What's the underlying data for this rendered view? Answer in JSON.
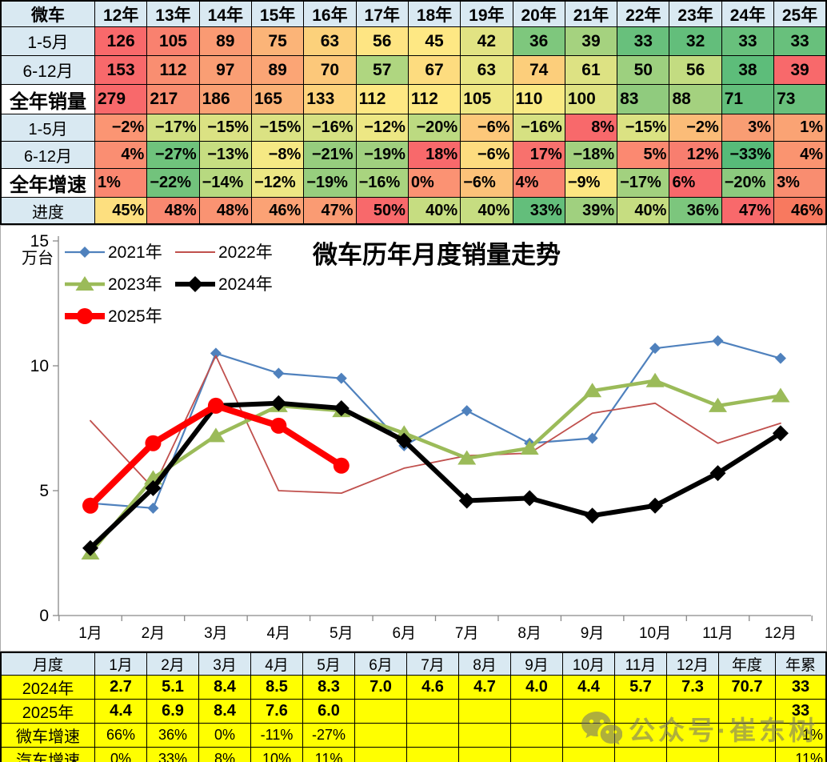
{
  "top_table": {
    "header": [
      "微车",
      "12年",
      "13年",
      "14年",
      "15年",
      "16年",
      "17年",
      "18年",
      "19年",
      "20年",
      "21年",
      "22年",
      "23年",
      "24年",
      "25年"
    ],
    "rows": [
      {
        "label": "1-5月",
        "kind": "count",
        "cells": [
          [
            "126",
            "#F8696B"
          ],
          [
            "105",
            "#F9816F"
          ],
          [
            "89",
            "#FA9A73"
          ],
          [
            "75",
            "#FBB478"
          ],
          [
            "63",
            "#FCD17B"
          ],
          [
            "56",
            "#FEE583"
          ],
          [
            "45",
            "#FEE884"
          ],
          [
            "42",
            "#E1E383"
          ],
          [
            "36",
            "#7EC77D"
          ],
          [
            "39",
            "#A5D27F"
          ],
          [
            "33",
            "#68C07C"
          ],
          [
            "32",
            "#63BE7B"
          ],
          [
            "33",
            "#68C07C"
          ],
          [
            "33",
            "#68C07C"
          ]
        ]
      },
      {
        "label": "6-12月",
        "kind": "count",
        "cells": [
          [
            "153",
            "#F8696B"
          ],
          [
            "112",
            "#F98E71"
          ],
          [
            "97",
            "#FA9E74"
          ],
          [
            "89",
            "#FBA575"
          ],
          [
            "70",
            "#FCC87A"
          ],
          [
            "57",
            "#AFD680"
          ],
          [
            "67",
            "#FDDC7F"
          ],
          [
            "63",
            "#E8E684"
          ],
          [
            "74",
            "#FCCE7B"
          ],
          [
            "61",
            "#DDE283"
          ],
          [
            "50",
            "#9DD07F"
          ],
          [
            "56",
            "#C3DC81"
          ],
          [
            "38",
            "#5DBD7A"
          ],
          [
            "39",
            "#F8696B"
          ]
        ]
      },
      {
        "label": "全年销量",
        "kind": "total",
        "cells": [
          [
            "279",
            "#F8696B"
          ],
          [
            "217",
            "#F98E71"
          ],
          [
            "186",
            "#FAA174"
          ],
          [
            "165",
            "#FBB277"
          ],
          [
            "133",
            "#FDD37C"
          ],
          [
            "112",
            "#FEE883"
          ],
          [
            "112",
            "#FEE883"
          ],
          [
            "105",
            "#EFE884"
          ],
          [
            "110",
            "#F9EA84"
          ],
          [
            "100",
            "#DFE383"
          ],
          [
            "83",
            "#90CB7E"
          ],
          [
            "88",
            "#A4D17F"
          ],
          [
            "71",
            "#63BE7B"
          ],
          [
            "73",
            "#69C07C"
          ]
        ]
      },
      {
        "label": "1-5月",
        "kind": "pct",
        "cells": [
          [
            "−2%",
            "#FB9573"
          ],
          [
            "−17%",
            "#D2E082"
          ],
          [
            "−15%",
            "#DBE283"
          ],
          [
            "−15%",
            "#DBE283"
          ],
          [
            "−16%",
            "#D6E182"
          ],
          [
            "−12%",
            "#EDE784"
          ],
          [
            "−20%",
            "#BCDA81"
          ],
          [
            "−6%",
            "#FDC87A"
          ],
          [
            "−16%",
            "#D6E182"
          ],
          [
            "8%",
            "#F8696B"
          ],
          [
            "−15%",
            "#DBE283"
          ],
          [
            "−2%",
            "#FBBC78"
          ],
          [
            "3%",
            "#F99D73"
          ],
          [
            "1%",
            "#FAA374"
          ]
        ]
      },
      {
        "label": "6-12月",
        "kind": "pct",
        "cells": [
          [
            "4%",
            "#FA8E72"
          ],
          [
            "−27%",
            "#6FC37C"
          ],
          [
            "−13%",
            "#C7DE81"
          ],
          [
            "−8%",
            "#F6E984"
          ],
          [
            "−21%",
            "#96CD7E"
          ],
          [
            "−19%",
            "#A0D07F"
          ],
          [
            "18%",
            "#F8696B"
          ],
          [
            "−6%",
            "#FDDC7F"
          ],
          [
            "17%",
            "#F8716D"
          ],
          [
            "−18%",
            "#A3D17F"
          ],
          [
            "5%",
            "#FB8971"
          ],
          [
            "12%",
            "#F87E6F"
          ],
          [
            "−33%",
            "#57BB79"
          ],
          [
            "4%",
            "#FA9470"
          ]
        ]
      },
      {
        "label": "全年增速",
        "kind": "totalpct",
        "cells": [
          [
            "1%",
            "#FA8770"
          ],
          [
            "−22%",
            "#72C37C"
          ],
          [
            "−14%",
            "#B7D980"
          ],
          [
            "−12%",
            "#EDE784"
          ],
          [
            "−19%",
            "#97CE7E"
          ],
          [
            "−16%",
            "#A9D47F"
          ],
          [
            "0%",
            "#FB9273"
          ],
          [
            "−6%",
            "#FCC279"
          ],
          [
            "4%",
            "#F9816F"
          ],
          [
            "−9%",
            "#FDE681"
          ],
          [
            "−17%",
            "#A2D17F"
          ],
          [
            "6%",
            "#F8696B"
          ],
          [
            "−20%",
            "#8CCA7E"
          ],
          [
            "3%",
            "#F98D70"
          ]
        ]
      },
      {
        "label": "进度",
        "kind": "progress",
        "cells": [
          [
            "45%",
            "#FDDF7F"
          ],
          [
            "48%",
            "#F98870"
          ],
          [
            "48%",
            "#FA9372"
          ],
          [
            "46%",
            "#FBA275"
          ],
          [
            "47%",
            "#FA9B73"
          ],
          [
            "50%",
            "#F8696B"
          ],
          [
            "40%",
            "#C6DD81"
          ],
          [
            "40%",
            "#C6DD81"
          ],
          [
            "33%",
            "#63BE7B"
          ],
          [
            "39%",
            "#A0D07F"
          ],
          [
            "40%",
            "#C6DD81"
          ],
          [
            "36%",
            "#7CC67D"
          ],
          [
            "47%",
            "#F8696B"
          ],
          [
            "46%",
            "#F8795F"
          ]
        ]
      }
    ]
  },
  "chart_data": {
    "type": "line",
    "title": "微车历年月度销量走势",
    "y_axis_unit": "万台",
    "ylabel": "万台",
    "xlabel": "",
    "ylim": [
      0,
      15
    ],
    "y_ticks": [
      0,
      5,
      10,
      15
    ],
    "grid": false,
    "legend_position": "top-left",
    "categories": [
      "1月",
      "2月",
      "3月",
      "4月",
      "5月",
      "6月",
      "7月",
      "8月",
      "9月",
      "10月",
      "11月",
      "12月"
    ],
    "series": [
      {
        "name": "2021年",
        "color": "#4F81BD",
        "marker": "diamond",
        "marker_size": 7,
        "line_width": 2.2,
        "values": [
          4.5,
          4.3,
          10.5,
          9.7,
          9.5,
          6.8,
          8.2,
          6.9,
          7.1,
          10.7,
          11.0,
          10.3
        ]
      },
      {
        "name": "2022年",
        "color": "#C0504D",
        "marker": "none",
        "marker_size": 0,
        "line_width": 1.8,
        "values": [
          7.8,
          5.1,
          10.4,
          5.0,
          4.9,
          5.9,
          6.4,
          6.5,
          8.1,
          8.5,
          6.9,
          7.7
        ]
      },
      {
        "name": "2023年",
        "color": "#9BBB59",
        "marker": "triangle",
        "marker_size": 10,
        "line_width": 4.5,
        "values": [
          2.5,
          5.5,
          7.2,
          8.4,
          8.2,
          7.3,
          6.3,
          6.7,
          9.0,
          9.4,
          8.4,
          8.8
        ]
      },
      {
        "name": "2024年",
        "color": "#000000",
        "marker": "diamond",
        "marker_size": 10,
        "line_width": 6,
        "values": [
          2.7,
          5.1,
          8.4,
          8.5,
          8.3,
          7.0,
          4.6,
          4.7,
          4.0,
          4.4,
          5.7,
          7.3
        ]
      },
      {
        "name": "2025年",
        "color": "#FF0000",
        "marker": "circle",
        "marker_size": 10,
        "line_width": 8,
        "values": [
          4.4,
          6.9,
          8.4,
          7.6,
          6.0
        ]
      }
    ]
  },
  "bottom_table": {
    "header": [
      "月度",
      "1月",
      "2月",
      "3月",
      "4月",
      "5月",
      "6月",
      "7月",
      "8月",
      "9月",
      "10月",
      "11月",
      "12月",
      "年度",
      "年累"
    ],
    "rows": [
      {
        "label": "2024年",
        "bold": true,
        "cells": [
          "2.7",
          "5.1",
          "8.4",
          "8.5",
          "8.3",
          "7.0",
          "4.6",
          "4.7",
          "4.0",
          "4.4",
          "5.7",
          "7.3",
          "70.7",
          "33"
        ]
      },
      {
        "label": "2025年",
        "bold": true,
        "cells": [
          "4.4",
          "6.9",
          "8.4",
          "7.6",
          "6.0",
          "",
          "",
          "",
          "",
          "",
          "",
          "",
          "",
          "33"
        ]
      },
      {
        "label": "微车增速",
        "bold": false,
        "cells": [
          "66%",
          "36%",
          "0%",
          "-11%",
          "-27%",
          "",
          "",
          "",
          "",
          "",
          "",
          "",
          "",
          "1%"
        ]
      },
      {
        "label": "汽车增速",
        "bold": false,
        "cells": [
          "0%",
          "33%",
          "8%",
          "10%",
          "11%",
          "",
          "",
          "",
          "",
          "",
          "",
          "",
          "",
          "11%"
        ]
      }
    ]
  },
  "watermark": {
    "icon": "wechat-icon",
    "text": "公众号·崔东树"
  },
  "colors": {
    "header_bg": "#D9E9F2",
    "row_yellow": "#FFFF00",
    "axis": "#898989",
    "title": "#000000"
  }
}
